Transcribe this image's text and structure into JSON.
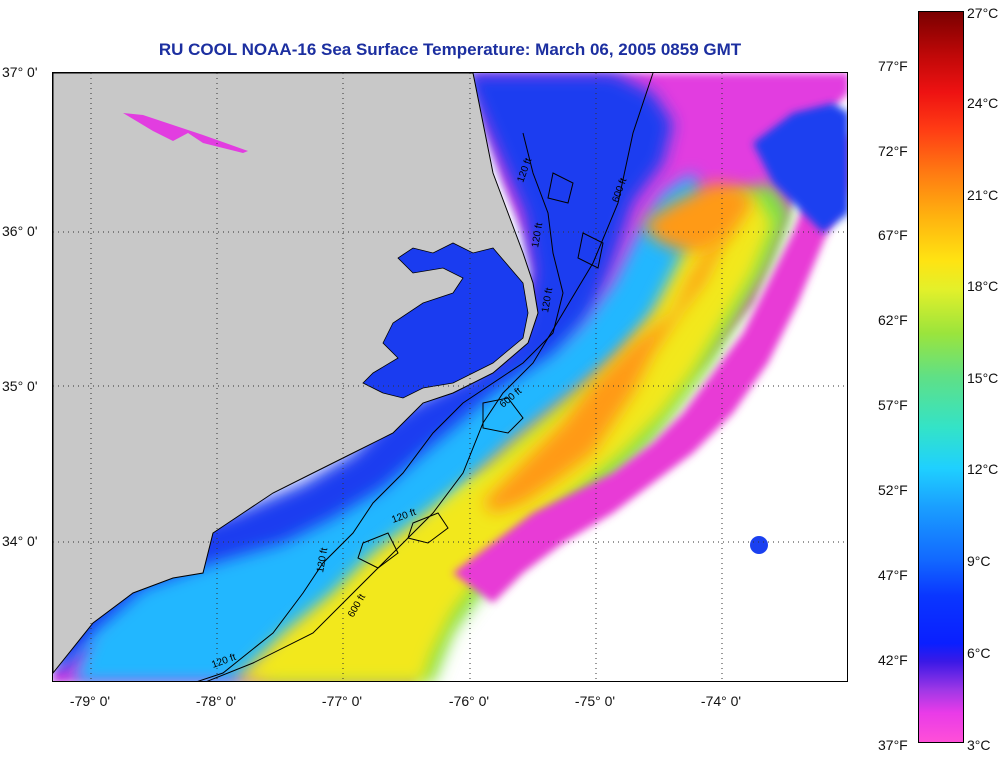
{
  "title": "RU COOL  NOAA-16  Sea Surface Temperature:  March 06, 2005 0859 GMT",
  "map": {
    "lat_labels": [
      "37° 0'",
      "36° 0'",
      "35° 0'",
      "34° 0'"
    ],
    "lon_labels": [
      "-79° 0'",
      "-78° 0'",
      "-77° 0'",
      "-76° 0'",
      "-75° 0'",
      "-74° 0'"
    ],
    "contour_labels": [
      "120 ft",
      "120 ft",
      "600 ft",
      "120 ft",
      "600 ft",
      "120 ft",
      "120 ft",
      "600 ft",
      "120 ft"
    ],
    "colors": {
      "land": "#c8c8c8",
      "no_data": "#ffffff",
      "contour": "#000000"
    }
  },
  "colorbar": {
    "fahrenheit_labels": [
      "77°F",
      "72°F",
      "67°F",
      "62°F",
      "57°F",
      "52°F",
      "47°F",
      "42°F",
      "37°F"
    ],
    "celsius_labels": [
      "27°C",
      "24°C",
      "21°C",
      "18°C",
      "15°C",
      "12°C",
      "9°C",
      "6°C",
      "3°C"
    ],
    "range_celsius": [
      3,
      27
    ],
    "range_fahrenheit": [
      37,
      80.6
    ]
  }
}
